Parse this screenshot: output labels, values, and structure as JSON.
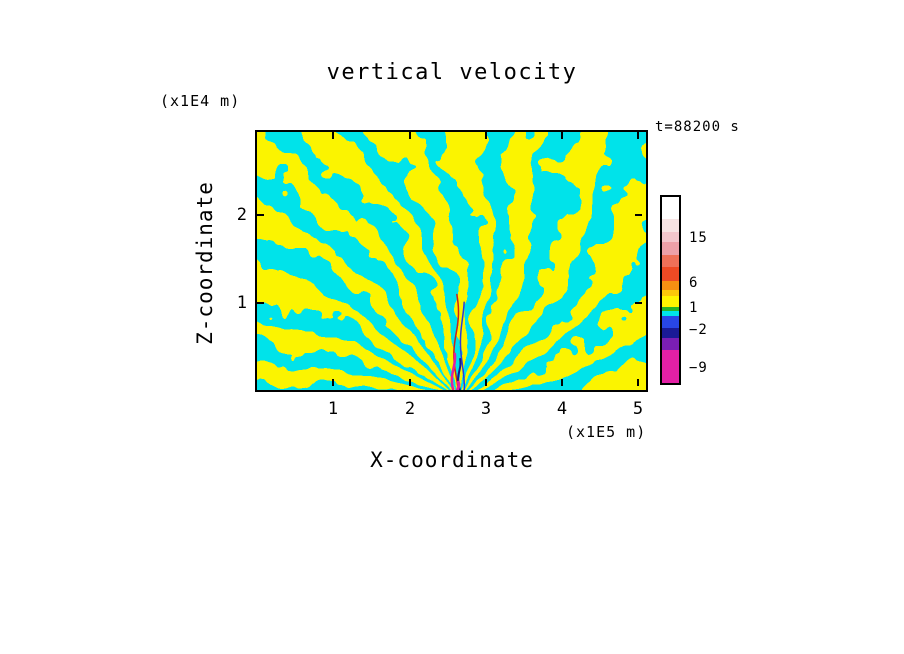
{
  "title": "vertical velocity",
  "annotation": "t=88200 s",
  "axes": {
    "x_label": "X-coordinate",
    "x_unit": "(x1E5 m)",
    "y_label": "Z-coordinate",
    "y_unit": "(x1E4 m)",
    "x_tick_labels": [
      "1",
      "2",
      "3",
      "4",
      "5"
    ],
    "y_tick_labels": [
      "2",
      "1"
    ]
  },
  "colorbar": {
    "labels": [
      "15",
      "6",
      "1",
      "−2",
      "−9"
    ],
    "segments": [
      {
        "color": "#ffffff",
        "h": 22
      },
      {
        "color": "#f7e3e3",
        "h": 14
      },
      {
        "color": "#f3c6cc",
        "h": 10
      },
      {
        "color": "#eda0a8",
        "h": 13
      },
      {
        "color": "#ef7058",
        "h": 13
      },
      {
        "color": "#ee4a24",
        "h": 14
      },
      {
        "color": "#f58f12",
        "h": 9
      },
      {
        "color": "#fcc80a",
        "h": 6
      },
      {
        "color": "#fff600",
        "h": 11
      },
      {
        "color": "#28b428",
        "h": 5
      },
      {
        "color": "#00e3ea",
        "h": 5
      },
      {
        "color": "#2846e6",
        "h": 12
      },
      {
        "color": "#1a1a96",
        "h": 10
      },
      {
        "color": "#7a1eb4",
        "h": 12
      },
      {
        "color": "#e320a5",
        "h": 34
      }
    ]
  },
  "chart_data": {
    "type": "heatmap",
    "title": "vertical velocity",
    "xlabel": "X-coordinate",
    "ylabel": "Z-coordinate",
    "x_unit": "x1E5 m",
    "y_unit": "x1E4 m",
    "time_annotation": "t=88200 s",
    "xlim": [
      0,
      5.1
    ],
    "ylim": [
      0,
      2.95
    ],
    "x_ticks": [
      1,
      2,
      3,
      4,
      5
    ],
    "y_ticks": [
      1,
      2
    ],
    "colorbar_levels": [
      -9,
      -2,
      1,
      6,
      15
    ],
    "palette": {
      "positive": "#fbf400",
      "negative": "#00e3ea"
    },
    "field": "binary turbulent wave field: yellow = positive vertical velocity, cyan = negative; fine streaks radiate fan-like from a source near x=2.6E5 m at the bottom, with stronger red/blue/magenta extrema in a narrow column there",
    "center_feature": {
      "x": 0.515,
      "streaks": [
        {
          "color": "#cc2016",
          "x": 0.512,
          "y0": 0.63,
          "y1": 1.0,
          "amp": 0.006,
          "freq": 7,
          "ph": 0.3,
          "w": 1.5
        },
        {
          "color": "#2a3cdc",
          "x": 0.528,
          "y0": 0.66,
          "y1": 1.0,
          "amp": 0.005,
          "freq": 6,
          "ph": 2.0,
          "w": 1.5
        },
        {
          "color": "#e020a0",
          "x": 0.505,
          "y0": 0.86,
          "y1": 1.0,
          "amp": 0.004,
          "freq": 5,
          "ph": 1.1,
          "w": 2.5
        },
        {
          "color": "#191989",
          "x": 0.52,
          "y0": 0.88,
          "y1": 1.0,
          "amp": 0.003,
          "freq": 6,
          "ph": 0.8,
          "w": 2.0
        },
        {
          "color": "#e320a5",
          "x": 0.517,
          "y0": 0.97,
          "y1": 1.0,
          "amp": 0.002,
          "freq": 4,
          "ph": 0.2,
          "w": 3.0
        }
      ]
    },
    "noise": {
      "scale_x": 12.5,
      "scale_y": 8.5,
      "angular_freq": 26,
      "radial_freq": 10,
      "phase_noise": 6.3,
      "amp_wave": 0.95,
      "amp_noise": 2.1
    }
  }
}
